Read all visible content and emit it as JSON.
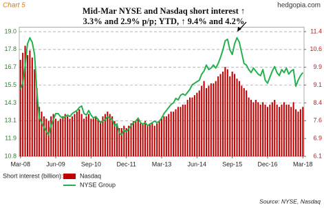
{
  "chart_label": "Chart 5",
  "site": "hedgopia.com",
  "source": "Source: NYSE, Nasdaq",
  "legend_title": "Short interest (billion):",
  "chart_data": {
    "type": "bar_line",
    "title_lines": [
      "Mid-Mar NYSE and Nasdaq short interest ↑",
      "3.3% and 2.9% p/p; YTD, ↑ 9.4% and 4.2%"
    ],
    "categories": [
      "Mar-08",
      null,
      null,
      null,
      null,
      null,
      null,
      null,
      null,
      null,
      null,
      null,
      null,
      null,
      null,
      "Jun-09",
      null,
      null,
      null,
      null,
      null,
      null,
      null,
      null,
      null,
      null,
      null,
      null,
      null,
      null,
      "Sep-10",
      null,
      null,
      null,
      null,
      null,
      null,
      null,
      null,
      null,
      null,
      null,
      null,
      null,
      null,
      "Dec-11",
      null,
      null,
      null,
      null,
      null,
      null,
      null,
      null,
      null,
      null,
      null,
      null,
      null,
      null,
      "Mar-13",
      null,
      null,
      null,
      null,
      null,
      null,
      null,
      null,
      null,
      null,
      null,
      null,
      null,
      null,
      "Jun-14",
      null,
      null,
      null,
      null,
      null,
      null,
      null,
      null,
      null,
      null,
      null,
      null,
      null,
      null,
      "Sep-15",
      null,
      null,
      null,
      null,
      null,
      null,
      null,
      null,
      null,
      null,
      null,
      null,
      null,
      null,
      "Dec-16",
      null,
      null,
      null,
      null,
      null,
      null,
      null,
      null,
      null,
      null,
      null,
      null,
      null,
      null,
      "Mar-18"
    ],
    "series": [
      {
        "name": "Nasdaq",
        "kind": "bar",
        "axis": "y2",
        "color": "#c00000",
        "values": [
          10.2,
          10.5,
          10.8,
          10.4,
          10.6,
          10.3,
          9.8,
          9.0,
          8.2,
          8.0,
          7.8,
          7.7,
          7.6,
          7.8,
          7.9,
          7.7,
          7.6,
          7.7,
          7.8,
          7.9,
          7.8,
          7.7,
          7.8,
          7.9,
          8.0,
          8.1,
          7.9,
          7.7,
          7.8,
          7.9,
          7.7,
          7.7,
          7.8,
          7.7,
          7.6,
          7.8,
          7.9,
          8.0,
          7.9,
          7.8,
          7.6,
          7.5,
          7.3,
          7.3,
          7.4,
          7.3,
          7.4,
          7.5,
          7.6,
          7.6,
          7.7,
          7.5,
          7.5,
          7.6,
          7.4,
          7.5,
          7.5,
          7.4,
          7.5,
          7.6,
          7.7,
          7.8,
          7.8,
          7.9,
          8.0,
          8.0,
          8.1,
          8.2,
          8.2,
          8.3,
          8.3,
          8.5,
          8.6,
          8.6,
          8.7,
          8.8,
          8.9,
          9.1,
          9.3,
          9.0,
          9.1,
          9.2,
          9.2,
          9.3,
          9.5,
          9.6,
          9.7,
          9.9,
          9.8,
          9.5,
          9.7,
          9.6,
          9.4,
          9.3,
          9.1,
          9.0,
          8.9,
          8.6,
          8.5,
          8.4,
          8.5,
          8.4,
          8.3,
          8.4,
          8.3,
          8.2,
          8.3,
          8.4,
          8.5,
          8.3,
          8.2,
          8.3,
          8.4,
          8.3,
          8.3,
          8.2,
          8.4,
          8.1,
          8.0,
          8.1,
          8.2
        ]
      },
      {
        "name": "NYSE Group",
        "kind": "line",
        "axis": "y",
        "color": "#22b14c",
        "values": [
          15.2,
          15.6,
          16.8,
          18.2,
          18.6,
          18.3,
          17.5,
          15.0,
          13.3,
          13.0,
          12.7,
          12.4,
          12.2,
          12.8,
          13.2,
          13.6,
          13.6,
          13.4,
          13.3,
          13.4,
          13.5,
          13.4,
          13.6,
          13.7,
          13.8,
          14.0,
          14.1,
          13.6,
          13.5,
          13.8,
          13.5,
          13.3,
          13.4,
          13.2,
          13.0,
          13.1,
          13.2,
          13.4,
          13.3,
          13.2,
          12.8,
          12.9,
          12.3,
          12.2,
          12.5,
          12.4,
          12.6,
          12.8,
          13.0,
          13.1,
          13.3,
          13.0,
          12.9,
          13.0,
          12.8,
          12.9,
          13.0,
          13.1,
          13.0,
          13.1,
          13.3,
          13.6,
          13.8,
          14.0,
          14.2,
          14.3,
          14.6,
          14.5,
          14.8,
          14.9,
          14.8,
          15.0,
          15.2,
          15.5,
          15.6,
          15.7,
          15.8,
          16.2,
          16.4,
          16.8,
          16.5,
          16.6,
          16.8,
          16.6,
          16.9,
          17.3,
          17.8,
          18.4,
          18.5,
          17.8,
          17.5,
          18.2,
          18.6,
          18.3,
          17.6,
          16.9,
          16.8,
          16.5,
          16.3,
          16.6,
          16.4,
          16.2,
          16.1,
          16.5,
          15.8,
          15.6,
          16.0,
          16.4,
          16.7,
          16.3,
          16.1,
          16.5,
          16.3,
          16.6,
          16.2,
          16.4,
          16.5,
          15.4,
          15.8,
          16.1,
          16.3
        ]
      }
    ],
    "ylim": [
      10.775,
      19.3
    ],
    "yticks": [
      {
        "value": 19.0,
        "label": "19.0"
      },
      {
        "value": 17.825,
        "label": "17.8"
      },
      {
        "value": 16.65,
        "label": "16.7"
      },
      {
        "value": 15.475,
        "label": "15.5"
      },
      {
        "value": 14.3,
        "label": "14.3"
      },
      {
        "value": 13.125,
        "label": "13.1"
      },
      {
        "value": 11.95,
        "label": "11.9"
      },
      {
        "value": 10.775,
        "label": "10.8"
      }
    ],
    "y2lim": [
      6.1,
      11.59
    ],
    "y2ticks": [
      {
        "value": 11.4,
        "label": "11.4"
      },
      {
        "value": 10.643,
        "label": "10.6"
      },
      {
        "value": 9.886,
        "label": "9.9"
      },
      {
        "value": 9.129,
        "label": "9.1"
      },
      {
        "value": 8.371,
        "label": "8.4"
      },
      {
        "value": 7.614,
        "label": "7.6"
      },
      {
        "value": 6.857,
        "label": "6.9"
      },
      {
        "value": 6.1,
        "label": "6.1"
      }
    ],
    "grid": true
  }
}
